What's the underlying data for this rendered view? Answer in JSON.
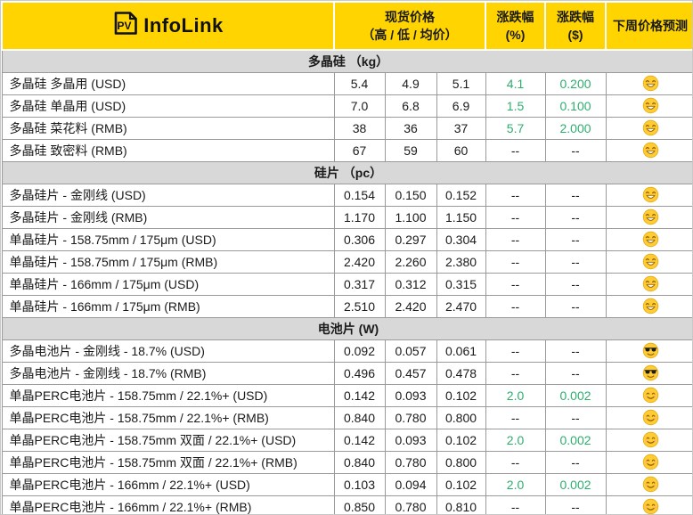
{
  "brand": {
    "logo_icon_text": "PV",
    "logo_name": "InfoLink"
  },
  "header": {
    "spot_price_line1": "现货价格",
    "spot_price_line2": "（高 / 低 / 均价）",
    "change_pct_line1": "涨跌幅",
    "change_pct_line2": "(%)",
    "change_abs_line1": "涨跌幅",
    "change_abs_line2": "($)",
    "forecast": "下周价格预测"
  },
  "colors": {
    "brand_yellow": "#FFD400",
    "section_gray": "#D8D8D8",
    "positive_green": "#2EAE6E",
    "border_gray": "#9a9a9a"
  },
  "chart_data": {
    "type": "table",
    "sections": [
      {
        "title": "多晶硅 （kg）",
        "rows": [
          {
            "label": "多晶硅 多晶用 (USD)",
            "high": "5.4",
            "low": "4.9",
            "avg": "5.1",
            "change_pct": "4.1",
            "change_abs": "0.200",
            "forecast": "grinning-face"
          },
          {
            "label": "多晶硅 单晶用 (USD)",
            "high": "7.0",
            "low": "6.8",
            "avg": "6.9",
            "change_pct": "1.5",
            "change_abs": "0.100",
            "forecast": "grinning-face"
          },
          {
            "label": "多晶硅 菜花料 (RMB)",
            "high": "38",
            "low": "36",
            "avg": "37",
            "change_pct": "5.7",
            "change_abs": "2.000",
            "forecast": "grinning-face"
          },
          {
            "label": "多晶硅 致密料 (RMB)",
            "high": "67",
            "low": "59",
            "avg": "60",
            "change_pct": "--",
            "change_abs": "--",
            "forecast": "grinning-face"
          }
        ]
      },
      {
        "title": "硅片 （pc）",
        "rows": [
          {
            "label": "多晶硅片 - 金刚线 (USD)",
            "high": "0.154",
            "low": "0.150",
            "avg": "0.152",
            "change_pct": "--",
            "change_abs": "--",
            "forecast": "grinning-face"
          },
          {
            "label": "多晶硅片 - 金刚线 (RMB)",
            "high": "1.170",
            "low": "1.100",
            "avg": "1.150",
            "change_pct": "--",
            "change_abs": "--",
            "forecast": "grinning-face"
          },
          {
            "label": "单晶硅片 - 158.75mm / 175μm (USD)",
            "high": "0.306",
            "low": "0.297",
            "avg": "0.304",
            "change_pct": "--",
            "change_abs": "--",
            "forecast": "grinning-face"
          },
          {
            "label": "单晶硅片 - 158.75mm / 175μm (RMB)",
            "high": "2.420",
            "low": "2.260",
            "avg": "2.380",
            "change_pct": "--",
            "change_abs": "--",
            "forecast": "grinning-face"
          },
          {
            "label": "单晶硅片 - 166mm / 175μm (USD)",
            "high": "0.317",
            "low": "0.312",
            "avg": "0.315",
            "change_pct": "--",
            "change_abs": "--",
            "forecast": "grinning-face"
          },
          {
            "label": "单晶硅片 - 166mm / 175μm (RMB)",
            "high": "2.510",
            "low": "2.420",
            "avg": "2.470",
            "change_pct": "--",
            "change_abs": "--",
            "forecast": "grinning-face"
          }
        ]
      },
      {
        "title": "电池片 (W)",
        "rows": [
          {
            "label": "多晶电池片 - 金刚线 - 18.7% (USD)",
            "high": "0.092",
            "low": "0.057",
            "avg": "0.061",
            "change_pct": "--",
            "change_abs": "--",
            "forecast": "sunglasses-face"
          },
          {
            "label": "多晶电池片 - 金刚线 - 18.7% (RMB)",
            "high": "0.496",
            "low": "0.457",
            "avg": "0.478",
            "change_pct": "--",
            "change_abs": "--",
            "forecast": "sunglasses-face"
          },
          {
            "label": "单晶PERC电池片 - 158.75mm / 22.1%+ (USD)",
            "high": "0.142",
            "low": "0.093",
            "avg": "0.102",
            "change_pct": "2.0",
            "change_abs": "0.002",
            "forecast": "smiling-face"
          },
          {
            "label": "单晶PERC电池片 - 158.75mm / 22.1%+ (RMB)",
            "high": "0.840",
            "low": "0.780",
            "avg": "0.800",
            "change_pct": "--",
            "change_abs": "--",
            "forecast": "smiling-face"
          },
          {
            "label": "单晶PERC电池片 - 158.75mm 双面 / 22.1%+ (USD)",
            "high": "0.142",
            "low": "0.093",
            "avg": "0.102",
            "change_pct": "2.0",
            "change_abs": "0.002",
            "forecast": "smiling-face"
          },
          {
            "label": "单晶PERC电池片 - 158.75mm 双面 / 22.1%+ (RMB)",
            "high": "0.840",
            "low": "0.780",
            "avg": "0.800",
            "change_pct": "--",
            "change_abs": "--",
            "forecast": "smiling-face"
          },
          {
            "label": "单晶PERC电池片 - 166mm / 22.1%+ (USD)",
            "high": "0.103",
            "low": "0.094",
            "avg": "0.102",
            "change_pct": "2.0",
            "change_abs": "0.002",
            "forecast": "smiling-face"
          },
          {
            "label": "单晶PERC电池片 - 166mm / 22.1%+ (RMB)",
            "high": "0.850",
            "low": "0.780",
            "avg": "0.810",
            "change_pct": "--",
            "change_abs": "--",
            "forecast": "smiling-face"
          }
        ]
      }
    ]
  }
}
